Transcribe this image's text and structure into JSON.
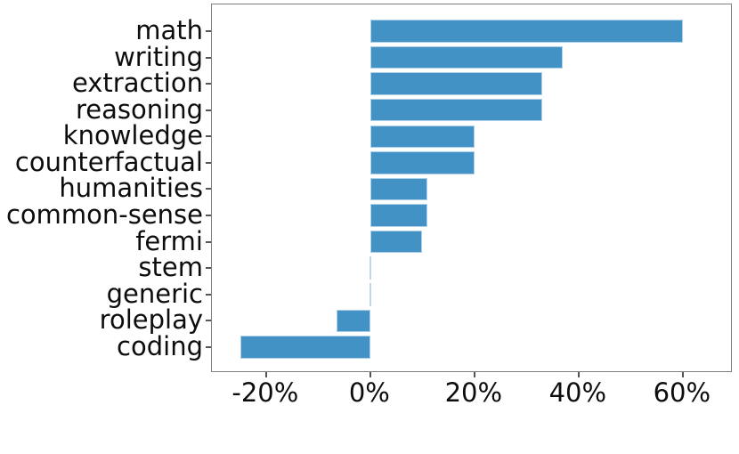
{
  "chart_data": {
    "type": "bar",
    "orientation": "horizontal",
    "title": "",
    "xlabel": "",
    "ylabel": "",
    "categories": [
      "math",
      "writing",
      "extraction",
      "reasoning",
      "knowledge",
      "counterfactual",
      "humanities",
      "common-sense",
      "fermi",
      "stem",
      "generic",
      "roleplay",
      "coding"
    ],
    "values": [
      60,
      37,
      33,
      33,
      20,
      20,
      11,
      11,
      10,
      0,
      0,
      -6.5,
      -25
    ],
    "value_unit": "%",
    "x_tick_labels": [
      "-20%",
      "0%",
      "20%",
      "40%",
      "60%"
    ],
    "x_tick_values": [
      -20,
      0,
      20,
      40,
      60
    ],
    "xlim": [
      -30.4,
      69.6
    ],
    "grid": false,
    "legend": null,
    "bar_color": "#4292c6",
    "zero_bar_color": "#bdd8ec",
    "axis_border_color": "#7f7f7f",
    "tick_color": "#555555",
    "text_color": "#0d0d0d"
  }
}
